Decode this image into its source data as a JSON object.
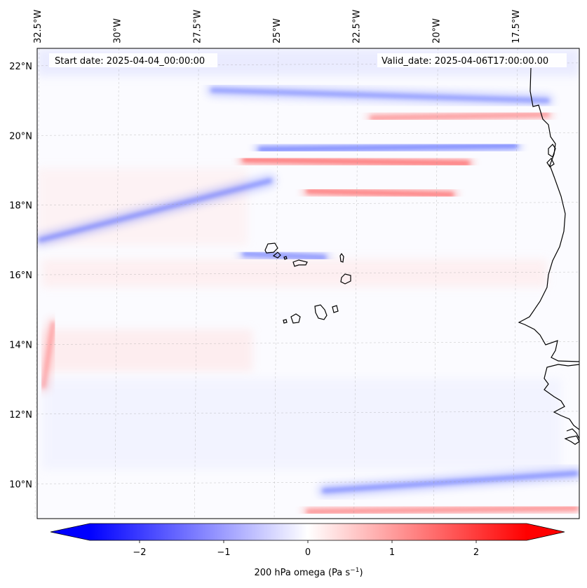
{
  "map": {
    "start_date_label": "Start date: 2025-04-04_00:00:00",
    "valid_date_label": "Valid_date: 2025-04-06T17:00:00.00",
    "lon_ticks": [
      "32.5°W",
      "30°W",
      "27.5°W",
      "25°W",
      "22.5°W",
      "20°W",
      "17.5°W"
    ],
    "lat_ticks": [
      "22°N",
      "20°N",
      "18°N",
      "16°N",
      "14°N",
      "12°N",
      "10°N"
    ],
    "lon_values": [
      -32.5,
      -30,
      -27.5,
      -25,
      -22.5,
      -20,
      -17.5
    ],
    "lat_values": [
      22,
      20,
      18,
      16,
      14,
      12,
      10
    ],
    "extent": {
      "lon_min": -32.5,
      "lon_max": -15.5,
      "lat_min": 9.0,
      "lat_max": 22.5
    }
  },
  "colorbar": {
    "title": "200 hPa omega (Pa s",
    "title_sup": "−1",
    "title_end": ")",
    "tick_labels": [
      "−2",
      "−1",
      "0",
      "1",
      "2"
    ],
    "tick_values": [
      -2,
      -1,
      0,
      1,
      2
    ],
    "vmin": -2.6,
    "vmax": 2.6,
    "cmap": "bwr",
    "colors": {
      "low": "#0000ff",
      "mid": "#ffffff",
      "high": "#ff0000"
    }
  },
  "field_features": [
    {
      "kind": "ascent-band",
      "sign": "negative",
      "strength": 0.6,
      "lon_start": -32.4,
      "lat_start": 17.0,
      "lon_end": -25.2,
      "lat_end": 18.7
    },
    {
      "kind": "ascent-band",
      "sign": "negative",
      "strength": 0.7,
      "lon_start": -25.5,
      "lat_start": 19.6,
      "lon_end": -17.5,
      "lat_end": 19.7
    },
    {
      "kind": "ascent-band",
      "sign": "negative",
      "strength": 0.55,
      "lon_start": -27.0,
      "lat_start": 21.3,
      "lon_end": -16.5,
      "lat_end": 21.0
    },
    {
      "kind": "ascent-band",
      "sign": "negative",
      "strength": 0.6,
      "lon_start": -26.0,
      "lat_start": 16.6,
      "lon_end": -23.5,
      "lat_end": 16.5
    },
    {
      "kind": "ascent-band",
      "sign": "negative",
      "strength": 0.6,
      "lon_start": -23.5,
      "lat_start": 9.8,
      "lon_end": -15.6,
      "lat_end": 10.3
    },
    {
      "kind": "descent-band",
      "sign": "positive",
      "strength": 0.75,
      "lon_start": -26.0,
      "lat_start": 19.3,
      "lon_end": -19.0,
      "lat_end": 19.2
    },
    {
      "kind": "descent-band",
      "sign": "positive",
      "strength": 0.7,
      "lon_start": -24.0,
      "lat_start": 18.4,
      "lon_end": -19.5,
      "lat_end": 18.3
    },
    {
      "kind": "descent-band",
      "sign": "positive",
      "strength": 0.5,
      "lon_start": -22.0,
      "lat_start": 20.5,
      "lon_end": -16.5,
      "lat_end": 20.6
    },
    {
      "kind": "descent-band",
      "sign": "positive",
      "strength": 0.55,
      "lon_start": -24.0,
      "lat_start": 9.2,
      "lon_end": -15.6,
      "lat_end": 9.3
    },
    {
      "kind": "descent-band",
      "sign": "positive",
      "strength": 0.4,
      "lon_start": -32.3,
      "lat_start": 12.8,
      "lon_end": -32.0,
      "lat_end": 14.6
    }
  ]
}
